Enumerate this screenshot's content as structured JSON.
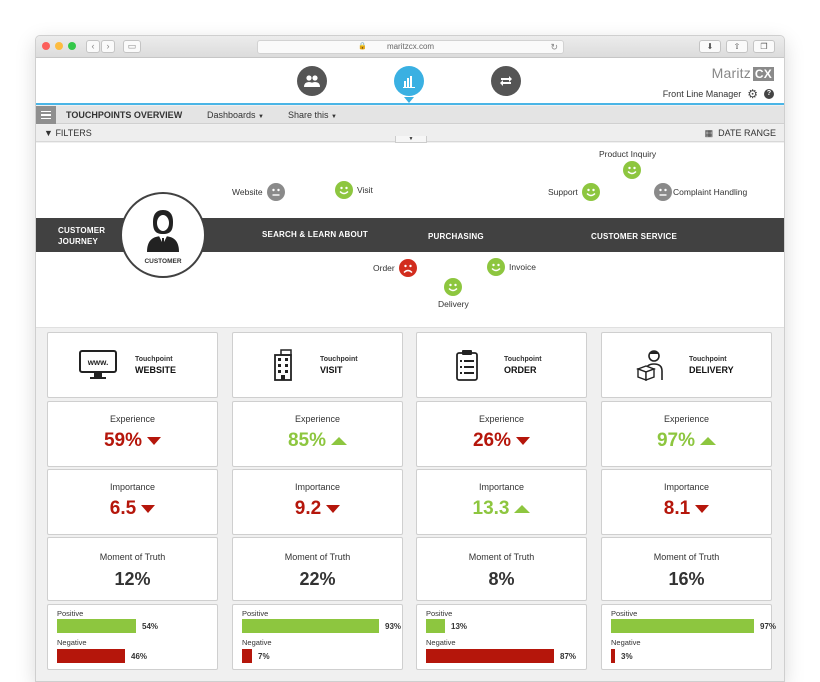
{
  "browser": {
    "url": "maritzcx.com"
  },
  "app": {
    "brand": "Maritz",
    "brand_suffix": "CX",
    "user_role": "Front Line Manager",
    "nav_icons": [
      "people-icon",
      "bar-chart-icon",
      "repeat-icon"
    ],
    "active_nav": "bar-chart-icon"
  },
  "toolbar": {
    "title": "TOUCHPOINTS OVERVIEW",
    "dashboards": "Dashboards",
    "share": "Share this",
    "filters": "FILTERS",
    "date_range": "DATE RANGE"
  },
  "journey": {
    "band_title_1": "CUSTOMER",
    "band_title_2": "JOURNEY",
    "avatar_label": "CUSTOMER",
    "stages": [
      "SEARCH & LEARN ABOUT",
      "PURCHASING",
      "CUSTOMER SERVICE"
    ],
    "touchpoints": [
      {
        "label": "Website",
        "mood": "neutral"
      },
      {
        "label": "Visit",
        "mood": "positive"
      },
      {
        "label": "Product Inquiry",
        "mood": "positive"
      },
      {
        "label": "Support",
        "mood": "positive"
      },
      {
        "label": "Complaint Handling",
        "mood": "neutral"
      },
      {
        "label": "Order",
        "mood": "negative"
      },
      {
        "label": "Invoice",
        "mood": "positive"
      },
      {
        "label": "Delivery",
        "mood": "positive"
      }
    ]
  },
  "cards": [
    {
      "touchpoint_caption": "Touchpoint",
      "name": "WEBSITE",
      "icon": "monitor-icon",
      "experience_label": "Experience",
      "experience": "59%",
      "experience_trend": "down",
      "importance_label": "Importance",
      "importance": "6.5",
      "importance_trend": "down",
      "moment_label": "Moment of Truth",
      "moment": "12%",
      "positive_label": "Positive",
      "positive": "54%",
      "positive_frac": 0.54,
      "negative_label": "Negative",
      "negative": "46%",
      "negative_frac": 0.46
    },
    {
      "touchpoint_caption": "Touchpoint",
      "name": "VISIT",
      "icon": "building-icon",
      "experience_label": "Experience",
      "experience": "85%",
      "experience_trend": "up",
      "importance_label": "Importance",
      "importance": "9.2",
      "importance_trend": "down",
      "moment_label": "Moment of Truth",
      "moment": "22%",
      "positive_label": "Positive",
      "positive": "93%",
      "positive_frac": 0.93,
      "negative_label": "Negative",
      "negative": "7%",
      "negative_frac": 0.07
    },
    {
      "touchpoint_caption": "Touchpoint",
      "name": "ORDER",
      "icon": "clipboard-icon",
      "experience_label": "Experience",
      "experience": "26%",
      "experience_trend": "down",
      "importance_label": "Importance",
      "importance": "13.3",
      "importance_trend": "up",
      "moment_label": "Moment of Truth",
      "moment": "8%",
      "positive_label": "Positive",
      "positive": "13%",
      "positive_frac": 0.13,
      "negative_label": "Negative",
      "negative": "87%",
      "negative_frac": 0.87
    },
    {
      "touchpoint_caption": "Touchpoint",
      "name": "DELIVERY",
      "icon": "delivery-person-icon",
      "experience_label": "Experience",
      "experience": "97%",
      "experience_trend": "up",
      "importance_label": "Importance",
      "importance": "8.1",
      "importance_trend": "down",
      "moment_label": "Moment of Truth",
      "moment": "16%",
      "positive_label": "Positive",
      "positive": "97%",
      "positive_frac": 0.97,
      "negative_label": "Negative",
      "negative": "3%",
      "negative_frac": 0.03
    }
  ],
  "colors": {
    "accent": "#3ab0e2",
    "positive": "#8dc63f",
    "negative": "#b5160b",
    "band": "#414141"
  }
}
